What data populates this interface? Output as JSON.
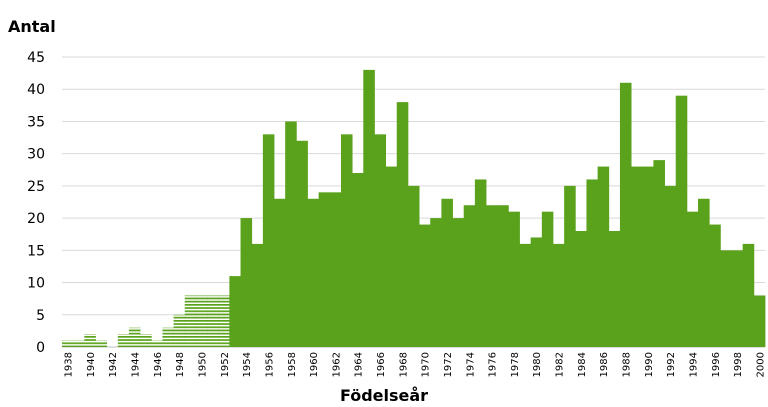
{
  "chart_data": {
    "type": "bar",
    "ylabel": "Antal",
    "xlabel": "Födelseår",
    "ylim": [
      0,
      45
    ],
    "yticks": [
      0,
      5,
      10,
      15,
      20,
      25,
      30,
      35,
      40,
      45
    ],
    "grid": true,
    "categories": [
      1938,
      1939,
      1940,
      1941,
      1942,
      1943,
      1944,
      1945,
      1946,
      1947,
      1948,
      1949,
      1950,
      1951,
      1952,
      1953,
      1954,
      1955,
      1956,
      1957,
      1958,
      1959,
      1960,
      1961,
      1962,
      1963,
      1964,
      1965,
      1966,
      1967,
      1968,
      1969,
      1970,
      1971,
      1972,
      1973,
      1974,
      1975,
      1976,
      1977,
      1978,
      1979,
      1980,
      1981,
      1982,
      1983,
      1984,
      1985,
      1986,
      1987,
      1988,
      1989,
      1990,
      1991,
      1992,
      1993,
      1994,
      1995,
      1996,
      1997,
      1998,
      1999,
      2000
    ],
    "xtick_labels": [
      "1938",
      "1940",
      "1942",
      "1944",
      "1946",
      "1948",
      "1950",
      "1952",
      "1954",
      "1956",
      "1958",
      "1960",
      "1962",
      "1964",
      "1966",
      "1968",
      "1970",
      "1972",
      "1974",
      "1976",
      "1978",
      "1980",
      "1982",
      "1984",
      "1986",
      "1988",
      "1990",
      "1992",
      "1994",
      "1996",
      "1998",
      "2000"
    ],
    "values": [
      1,
      1,
      2,
      1,
      0,
      2,
      3,
      2,
      1,
      3,
      5,
      8,
      8,
      8,
      8,
      11,
      20,
      16,
      33,
      23,
      35,
      32,
      23,
      24,
      24,
      33,
      27,
      43,
      33,
      28,
      38,
      25,
      19,
      20,
      23,
      20,
      22,
      26,
      22,
      22,
      21,
      16,
      17,
      21,
      16,
      25,
      18,
      26,
      28,
      18,
      41,
      28,
      28,
      29,
      25,
      39,
      21,
      23,
      19,
      15,
      15,
      16,
      8
    ],
    "hatched_until": 1952,
    "colors": {
      "bar": "#5aa21b",
      "grid": "#d9d9d9",
      "axis": "#bfbfbf",
      "text": "#000000"
    }
  }
}
